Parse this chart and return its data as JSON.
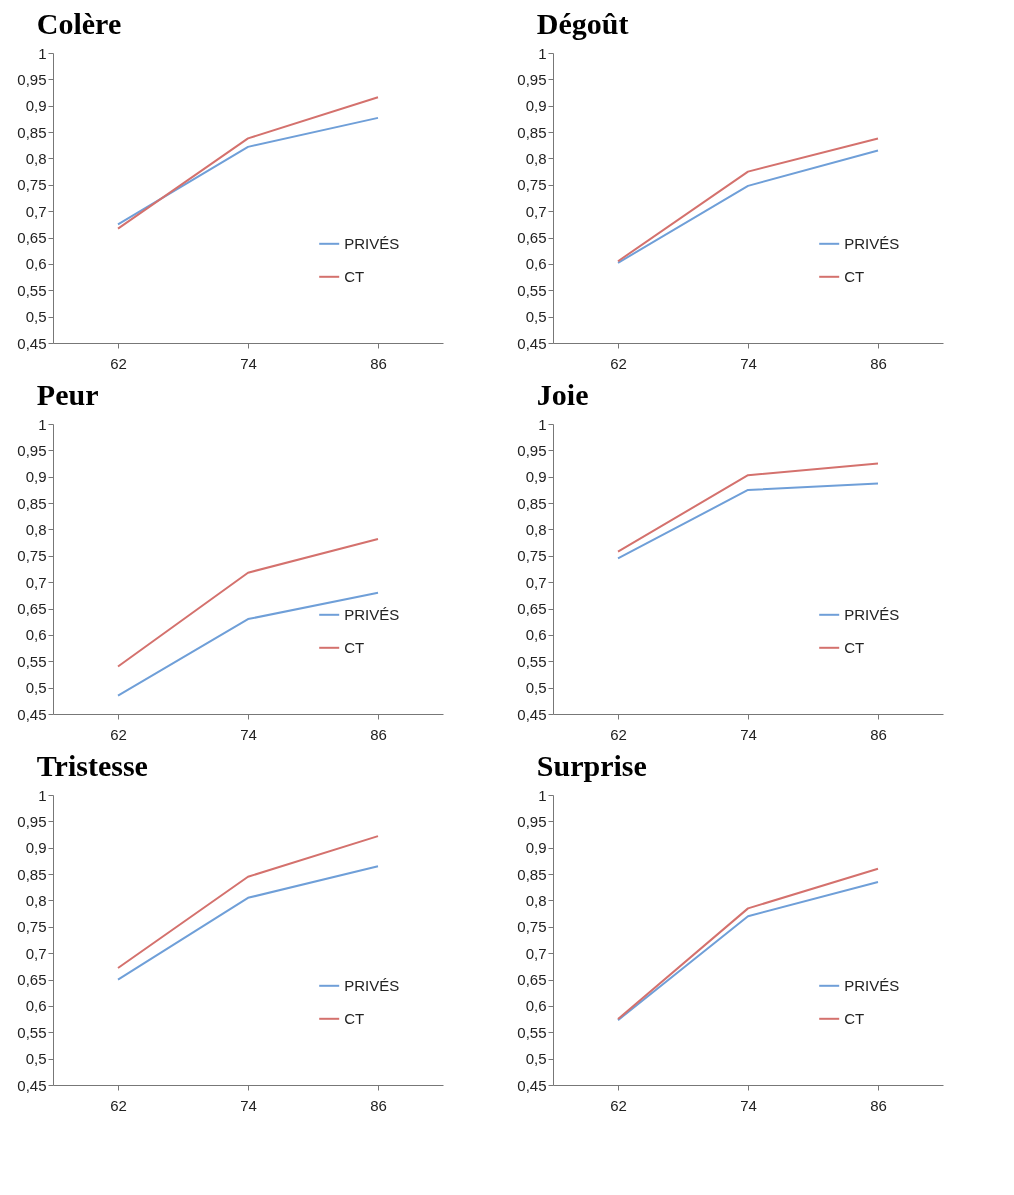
{
  "chart_data": [
    {
      "type": "line",
      "title": "Colère",
      "categories": [
        "62",
        "74",
        "86"
      ],
      "legend": "right",
      "ylim": [
        0.45,
        1
      ],
      "yticks": [
        {
          "value": 0.45,
          "label": "0,45"
        },
        {
          "value": 0.5,
          "label": "0,5"
        },
        {
          "value": 0.55,
          "label": "0,55"
        },
        {
          "value": 0.6,
          "label": "0,6"
        },
        {
          "value": 0.65,
          "label": "0,65"
        },
        {
          "value": 0.7,
          "label": "0,7"
        },
        {
          "value": 0.75,
          "label": "0,75"
        },
        {
          "value": 0.8,
          "label": "0,8"
        },
        {
          "value": 0.85,
          "label": "0,85"
        },
        {
          "value": 0.9,
          "label": "0,9"
        },
        {
          "value": 0.95,
          "label": "0,95"
        },
        {
          "value": 1,
          "label": "1"
        }
      ],
      "series": [
        {
          "name": "PRIVÉS",
          "color": "#6f9fd8",
          "values": [
            0.675,
            0.822,
            0.877
          ]
        },
        {
          "name": "CT",
          "color": "#d4716d",
          "values": [
            0.667,
            0.838,
            0.916
          ]
        }
      ]
    },
    {
      "type": "line",
      "title": "Dégoût",
      "categories": [
        "62",
        "74",
        "86"
      ],
      "legend": "right",
      "ylim": [
        0.45,
        1
      ],
      "yticks": [
        {
          "value": 0.45,
          "label": "0,45"
        },
        {
          "value": 0.5,
          "label": "0,5"
        },
        {
          "value": 0.55,
          "label": "0,55"
        },
        {
          "value": 0.6,
          "label": "0,6"
        },
        {
          "value": 0.65,
          "label": "0,65"
        },
        {
          "value": 0.7,
          "label": "0,7"
        },
        {
          "value": 0.75,
          "label": "0,75"
        },
        {
          "value": 0.8,
          "label": "0,8"
        },
        {
          "value": 0.85,
          "label": "0,85"
        },
        {
          "value": 0.9,
          "label": "0,9"
        },
        {
          "value": 0.95,
          "label": "0,95"
        },
        {
          "value": 1,
          "label": "1"
        }
      ],
      "series": [
        {
          "name": "PRIVÉS",
          "color": "#6f9fd8",
          "values": [
            0.602,
            0.748,
            0.815
          ]
        },
        {
          "name": "CT",
          "color": "#d4716d",
          "values": [
            0.605,
            0.775,
            0.838
          ]
        }
      ]
    },
    {
      "type": "line",
      "title": "Peur",
      "categories": [
        "62",
        "74",
        "86"
      ],
      "legend": "right",
      "ylim": [
        0.45,
        1
      ],
      "yticks": [
        {
          "value": 0.45,
          "label": "0,45"
        },
        {
          "value": 0.5,
          "label": "0,5"
        },
        {
          "value": 0.55,
          "label": "0,55"
        },
        {
          "value": 0.6,
          "label": "0,6"
        },
        {
          "value": 0.65,
          "label": "0,65"
        },
        {
          "value": 0.7,
          "label": "0,7"
        },
        {
          "value": 0.75,
          "label": "0,75"
        },
        {
          "value": 0.8,
          "label": "0,8"
        },
        {
          "value": 0.85,
          "label": "0,85"
        },
        {
          "value": 0.9,
          "label": "0,9"
        },
        {
          "value": 0.95,
          "label": "0,95"
        },
        {
          "value": 1,
          "label": "1"
        }
      ],
      "series": [
        {
          "name": "PRIVÉS",
          "color": "#6f9fd8",
          "values": [
            0.485,
            0.63,
            0.68
          ]
        },
        {
          "name": "CT",
          "color": "#d4716d",
          "values": [
            0.54,
            0.718,
            0.782
          ]
        }
      ]
    },
    {
      "type": "line",
      "title": "Joie",
      "categories": [
        "62",
        "74",
        "86"
      ],
      "legend": "right",
      "ylim": [
        0.45,
        1
      ],
      "yticks": [
        {
          "value": 0.45,
          "label": "0,45"
        },
        {
          "value": 0.5,
          "label": "0,5"
        },
        {
          "value": 0.55,
          "label": "0,55"
        },
        {
          "value": 0.6,
          "label": "0,6"
        },
        {
          "value": 0.65,
          "label": "0,65"
        },
        {
          "value": 0.7,
          "label": "0,7"
        },
        {
          "value": 0.75,
          "label": "0,75"
        },
        {
          "value": 0.8,
          "label": "0,8"
        },
        {
          "value": 0.85,
          "label": "0,85"
        },
        {
          "value": 0.9,
          "label": "0,9"
        },
        {
          "value": 0.95,
          "label": "0,95"
        },
        {
          "value": 1,
          "label": "1"
        }
      ],
      "series": [
        {
          "name": "PRIVÉS",
          "color": "#6f9fd8",
          "values": [
            0.745,
            0.875,
            0.887
          ]
        },
        {
          "name": "CT",
          "color": "#d4716d",
          "values": [
            0.758,
            0.903,
            0.925
          ]
        }
      ]
    },
    {
      "type": "line",
      "title": "Tristesse",
      "categories": [
        "62",
        "74",
        "86"
      ],
      "legend": "right",
      "ylim": [
        0.45,
        1
      ],
      "yticks": [
        {
          "value": 0.45,
          "label": "0,45"
        },
        {
          "value": 0.5,
          "label": "0,5"
        },
        {
          "value": 0.55,
          "label": "0,55"
        },
        {
          "value": 0.6,
          "label": "0,6"
        },
        {
          "value": 0.65,
          "label": "0,65"
        },
        {
          "value": 0.7,
          "label": "0,7"
        },
        {
          "value": 0.75,
          "label": "0,75"
        },
        {
          "value": 0.8,
          "label": "0,8"
        },
        {
          "value": 0.85,
          "label": "0,85"
        },
        {
          "value": 0.9,
          "label": "0,9"
        },
        {
          "value": 0.95,
          "label": "0,95"
        },
        {
          "value": 1,
          "label": "1"
        }
      ],
      "series": [
        {
          "name": "PRIVÉS",
          "color": "#6f9fd8",
          "values": [
            0.65,
            0.805,
            0.865
          ]
        },
        {
          "name": "CT",
          "color": "#d4716d",
          "values": [
            0.672,
            0.845,
            0.922
          ]
        }
      ]
    },
    {
      "type": "line",
      "title": "Surprise",
      "categories": [
        "62",
        "74",
        "86"
      ],
      "legend": "right",
      "ylim": [
        0.45,
        1
      ],
      "yticks": [
        {
          "value": 0.45,
          "label": "0,45"
        },
        {
          "value": 0.5,
          "label": "0,5"
        },
        {
          "value": 0.55,
          "label": "0,55"
        },
        {
          "value": 0.6,
          "label": "0,6"
        },
        {
          "value": 0.65,
          "label": "0,65"
        },
        {
          "value": 0.7,
          "label": "0,7"
        },
        {
          "value": 0.75,
          "label": "0,75"
        },
        {
          "value": 0.8,
          "label": "0,8"
        },
        {
          "value": 0.85,
          "label": "0,85"
        },
        {
          "value": 0.9,
          "label": "0,9"
        },
        {
          "value": 0.95,
          "label": "0,95"
        },
        {
          "value": 1,
          "label": "1"
        }
      ],
      "series": [
        {
          "name": "PRIVÉS",
          "color": "#6f9fd8",
          "values": [
            0.573,
            0.77,
            0.835
          ]
        },
        {
          "name": "CT",
          "color": "#d4716d",
          "values": [
            0.575,
            0.785,
            0.86
          ]
        }
      ]
    }
  ]
}
